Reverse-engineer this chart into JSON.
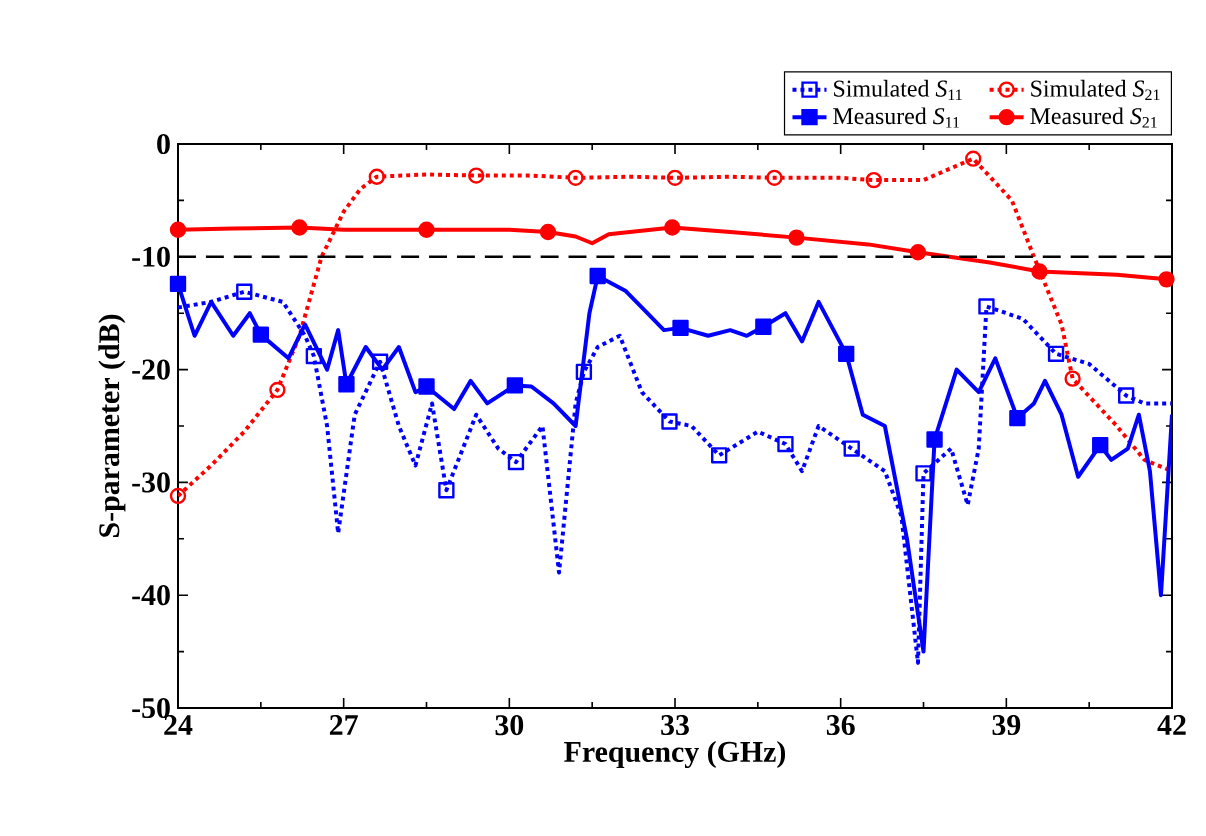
{
  "chart_data": {
    "type": "line",
    "xlabel": "Frequency (GHz)",
    "ylabel": "S-parameter (dB)",
    "xlim": [
      24,
      42
    ],
    "ylim": [
      -50,
      0
    ],
    "xticks": [
      24,
      27,
      30,
      33,
      36,
      39,
      42
    ],
    "yticks": [
      -50,
      -40,
      -30,
      -20,
      -10,
      0
    ],
    "grid": false,
    "legend": "top right",
    "ref_lines": [
      {
        "axis": "y",
        "value": -10,
        "color": "#000000",
        "line_style": "dashed"
      }
    ],
    "series": [
      {
        "name": "Simulated *S*$_{11}$",
        "color": "#0000ff",
        "line_style": "dotted",
        "x": [
          24,
          24.6,
          25.2,
          25.9,
          26.3,
          26.46,
          26.7,
          26.9,
          27.2,
          27.66,
          28,
          28.3,
          28.6,
          28.86,
          29.4,
          29.8,
          30.12,
          30.6,
          30.9,
          31.2,
          31.35,
          31.6,
          32,
          32.4,
          32.9,
          33.3,
          33.8,
          34.5,
          35,
          35.3,
          35.6,
          36.2,
          36.8,
          37.1,
          37.4,
          37.5,
          38,
          38.3,
          38.5,
          38.64,
          39.3,
          39.9,
          40.5,
          41.17,
          41.5,
          42
        ],
        "values": [
          -14.5,
          -14,
          -13.1,
          -14,
          -17,
          -18.8,
          -25,
          -34.5,
          -24,
          -19.3,
          -25,
          -28.5,
          -23,
          -30.7,
          -24,
          -27,
          -28.2,
          -25,
          -38,
          -23,
          -20.2,
          -18,
          -17,
          -22,
          -24.6,
          -25,
          -27.6,
          -25.5,
          -26.6,
          -29,
          -25,
          -27,
          -29,
          -33,
          -46,
          -29.2,
          -27,
          -32,
          -27,
          -14.4,
          -15.5,
          -18.6,
          -19.5,
          -22.3,
          -23,
          -23
        ]
      },
      {
        "type": "scatter",
        "color": "#0000ff",
        "marker": "square",
        "x": [
          25.2,
          26.46,
          27.66,
          28.86,
          30.12,
          31.35,
          32.9,
          33.8,
          35.0,
          36.2,
          37.5,
          38.64,
          39.9,
          41.17
        ],
        "values": [
          -13.1,
          -18.8,
          -19.3,
          -30.7,
          -28.2,
          -20.2,
          -24.6,
          -27.6,
          -26.6,
          -27,
          -29.2,
          -14.4,
          -18.6,
          -22.3
        ]
      },
      {
        "name": "Simulated *S*$_{21}$",
        "color": "#ff0000",
        "line_style": "dotted",
        "x": [
          24,
          24.6,
          25.2,
          25.8,
          26.2,
          26.6,
          27,
          27.3,
          27.6,
          28.5,
          29.4,
          30.4,
          31.2,
          32.2,
          33,
          34,
          34.8,
          36,
          36.6,
          37.5,
          38.4,
          39.1,
          39.5,
          40,
          40.2,
          41,
          41.5,
          42
        ],
        "values": [
          -31.2,
          -28.5,
          -25.5,
          -21.8,
          -17,
          -10,
          -6,
          -4,
          -2.9,
          -2.7,
          -2.8,
          -2.8,
          -3,
          -2.9,
          -3,
          -2.9,
          -3,
          -3,
          -3.2,
          -3.2,
          -1.3,
          -5,
          -10,
          -16,
          -20.8,
          -25,
          -28,
          -29
        ]
      },
      {
        "type": "scatter",
        "color": "#ff0000",
        "marker": "circle",
        "x": [
          24,
          25.8,
          27.6,
          29.4,
          31.2,
          33,
          34.8,
          36.6,
          38.4,
          40.2
        ],
        "values": [
          -31.2,
          -21.8,
          -2.9,
          -2.8,
          -3,
          -3,
          -3,
          -3.2,
          -1.3,
          -20.8
        ]
      },
      {
        "name": "Measured *S*$_{11}$",
        "color": "#0000ff",
        "line_style": "solid",
        "x": [
          24,
          24.3,
          24.6,
          25,
          25.3,
          25.5,
          26,
          26.3,
          26.7,
          26.9,
          27.05,
          27.4,
          27.7,
          28,
          28.3,
          28.5,
          29,
          29.3,
          29.6,
          30.1,
          30.4,
          30.8,
          31.2,
          31.45,
          31.6,
          32.1,
          32.5,
          32.8,
          33.1,
          33.6,
          34,
          34.3,
          34.6,
          35,
          35.3,
          35.6,
          36.1,
          36.4,
          36.8,
          37.2,
          37.5,
          37.7,
          38.1,
          38.5,
          38.8,
          39.2,
          39.5,
          39.7,
          40,
          40.3,
          40.7,
          40.9,
          41.2,
          41.4,
          41.6,
          41.8,
          42
        ],
        "values": [
          -12.4,
          -17,
          -14,
          -17,
          -15,
          -16.9,
          -19,
          -16,
          -20,
          -16.5,
          -21.3,
          -18,
          -20,
          -18,
          -22,
          -21.5,
          -23.5,
          -21,
          -23,
          -21.4,
          -21.5,
          -23,
          -25,
          -15,
          -11.7,
          -13,
          -15,
          -16.5,
          -16.3,
          -17,
          -16.5,
          -17,
          -16.2,
          -15,
          -17.5,
          -14,
          -18.6,
          -24,
          -25,
          -35,
          -45,
          -26.2,
          -20,
          -22,
          -19,
          -24.3,
          -23,
          -21,
          -24,
          -29.5,
          -26.7,
          -28,
          -27,
          -24,
          -29,
          -40,
          -24
        ]
      },
      {
        "type": "scatter",
        "color": "#0000ff",
        "marker": "square",
        "x": [
          24,
          25.5,
          27.05,
          28.5,
          30.1,
          31.6,
          33.1,
          34.6,
          36.1,
          37.7,
          39.2,
          40.7
        ],
        "values": [
          -12.4,
          -16.9,
          -21.3,
          -21.5,
          -21.4,
          -11.7,
          -16.3,
          -16.2,
          -18.6,
          -26.2,
          -24.3,
          -26.7
        ]
      },
      {
        "name": "Measured *S*$_{21}$",
        "color": "#ff0000",
        "line_style": "solid",
        "x": [
          24,
          25,
          26.2,
          27,
          28.5,
          30,
          30.7,
          31.2,
          31.5,
          31.8,
          32.95,
          34,
          35.2,
          36.5,
          37.4,
          38.7,
          39.6,
          41,
          41.9,
          42
        ],
        "values": [
          -7.6,
          -7.5,
          -7.4,
          -7.6,
          -7.6,
          -7.6,
          -7.8,
          -8.2,
          -8.8,
          -8,
          -7.4,
          -7.8,
          -8.3,
          -8.9,
          -9.6,
          -10.5,
          -11.3,
          -11.6,
          -12,
          -12
        ]
      },
      {
        "type": "scatter",
        "color": "#ff0000",
        "marker": "circle",
        "x": [
          24,
          26.2,
          28.5,
          30.7,
          32.95,
          35.2,
          37.4,
          39.6,
          41.9
        ],
        "values": [
          -7.6,
          -7.4,
          -7.6,
          -7.8,
          -7.4,
          -8.3,
          -9.6,
          -11.3,
          -12
        ]
      }
    ]
  }
}
